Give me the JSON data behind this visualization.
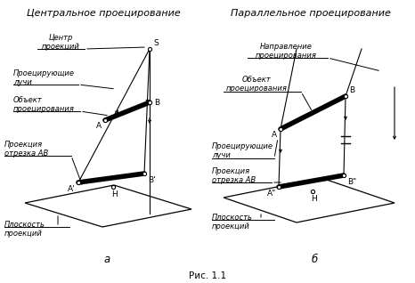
{
  "title_left": "Центральное проецирование",
  "title_right": "Параллельное проецирование",
  "caption": "Рис. 1.1",
  "sub_a": "а",
  "sub_b": "б",
  "bg_color": "#ffffff",
  "line_color": "#000000",
  "text_color": "#000000",
  "font_size": 6.5,
  "title_font_size": 8.0,
  "annot_font_size": 6.0
}
